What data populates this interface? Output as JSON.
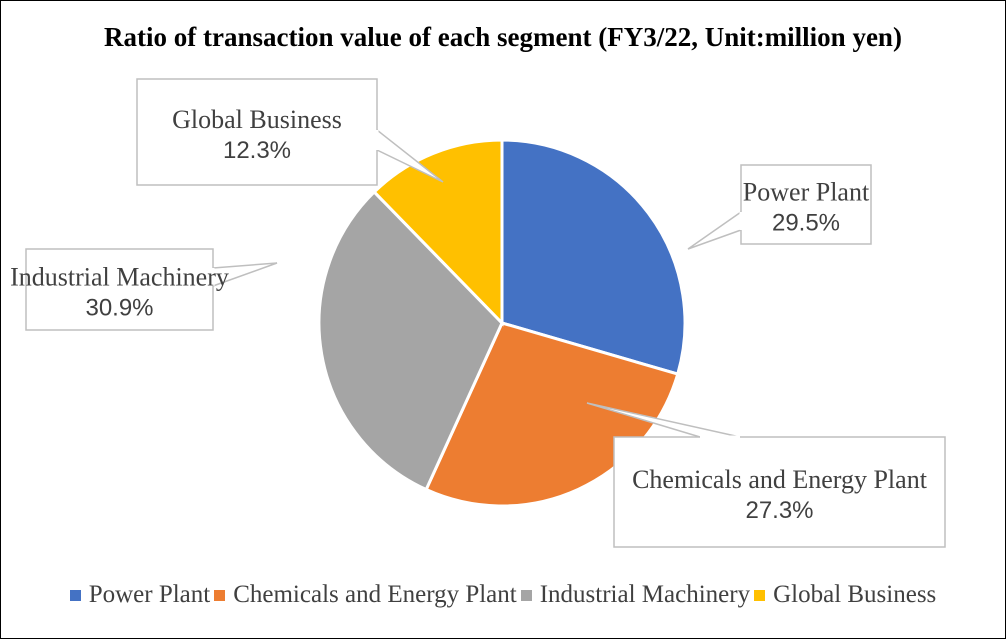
{
  "chart_data": {
    "type": "pie",
    "title": "Ratio of transaction value of each segment (FY3/22, Unit:million yen)",
    "legend_position": "bottom",
    "slices": [
      {
        "name": "Power Plant",
        "value": 29.5,
        "label": "29.5%",
        "color": "#4472C4"
      },
      {
        "name": "Chemicals and Energy Plant",
        "value": 27.3,
        "label": "27.3%",
        "color": "#ED7D31"
      },
      {
        "name": "Industrial Machinery",
        "value": 30.9,
        "label": "30.9%",
        "color": "#A5A5A5"
      },
      {
        "name": "Global Business",
        "value": 12.3,
        "label": "12.3%",
        "color": "#FFC000"
      }
    ]
  }
}
